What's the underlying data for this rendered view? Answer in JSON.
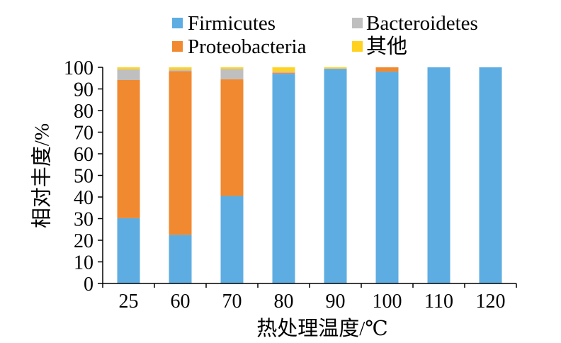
{
  "chart_data": {
    "type": "bar",
    "stacked": true,
    "title": "",
    "xlabel": "热处理温度/℃",
    "ylabel": "相对丰度/%",
    "ylim": [
      0,
      100
    ],
    "yticks": [
      0,
      10,
      20,
      30,
      40,
      50,
      60,
      70,
      80,
      90,
      100
    ],
    "categories": [
      "25",
      "60",
      "70",
      "80",
      "90",
      "100",
      "110",
      "120"
    ],
    "series": [
      {
        "name": "Firmicutes",
        "color": "#5DADE2",
        "values": [
          30.2,
          22.5,
          40.5,
          97.0,
          99.3,
          98.0,
          100,
          100
        ]
      },
      {
        "name": "Proteobacteria",
        "color": "#F0892F",
        "values": [
          63.9,
          75.8,
          54.0,
          0.5,
          0.1,
          2.0,
          0,
          0
        ]
      },
      {
        "name": "Bacteroidetes",
        "color": "#BFBFBF",
        "values": [
          5.0,
          0.7,
          4.8,
          0.6,
          0.1,
          0,
          0,
          0
        ]
      },
      {
        "name": "其他",
        "color": "#FFD21F",
        "values": [
          0.9,
          1.0,
          0.7,
          1.9,
          0.5,
          0,
          0,
          0
        ]
      }
    ],
    "legend": "top",
    "grid": false
  }
}
